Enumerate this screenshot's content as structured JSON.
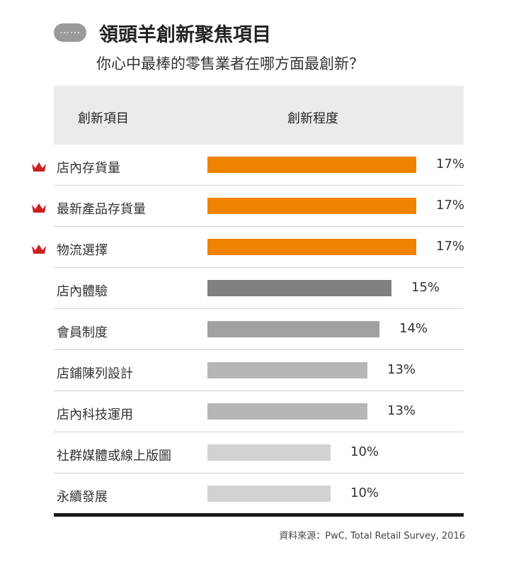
{
  "header": {
    "badge": "……",
    "title": "領頭羊創新聚焦項目",
    "subtitle": "你心中最棒的零售業者在哪方面最創新？"
  },
  "table": {
    "col_item": "創新項目",
    "col_level": "創新程度"
  },
  "colors": {
    "highlight": "#f08300",
    "dark_gray": "#808080",
    "mid_gray": "#a0a0a0",
    "gray": "#b6b6b6",
    "light_gray": "#d2d2d2",
    "crown": "#cc1f1f"
  },
  "chart_data": {
    "type": "bar",
    "orientation": "horizontal",
    "title": "領頭羊創新聚焦項目",
    "subtitle": "你心中最棒的零售業者在哪方面最創新？",
    "categories": [
      "店內存貨量",
      "最新產品存貨量",
      "物流選擇",
      "店內體驗",
      "會員制度",
      "店鋪陳列設計",
      "店內科技運用",
      "社群媒體或線上版圖",
      "永續發展"
    ],
    "values": [
      17,
      17,
      17,
      15,
      14,
      13,
      13,
      10,
      10
    ],
    "value_labels": [
      "17%",
      "17%",
      "17%",
      "15%",
      "14%",
      "13%",
      "13%",
      "10%",
      "10%"
    ],
    "bar_colors": [
      "#f08300",
      "#f08300",
      "#f08300",
      "#808080",
      "#a0a0a0",
      "#b6b6b6",
      "#b6b6b6",
      "#d2d2d2",
      "#d2d2d2"
    ],
    "highlighted": [
      true,
      true,
      true,
      false,
      false,
      false,
      false,
      false,
      false
    ],
    "unit": "%",
    "xlim": [
      0,
      17
    ]
  },
  "footer": {
    "source": "資料來源：PwC, Total Retail Survey, 2016"
  }
}
